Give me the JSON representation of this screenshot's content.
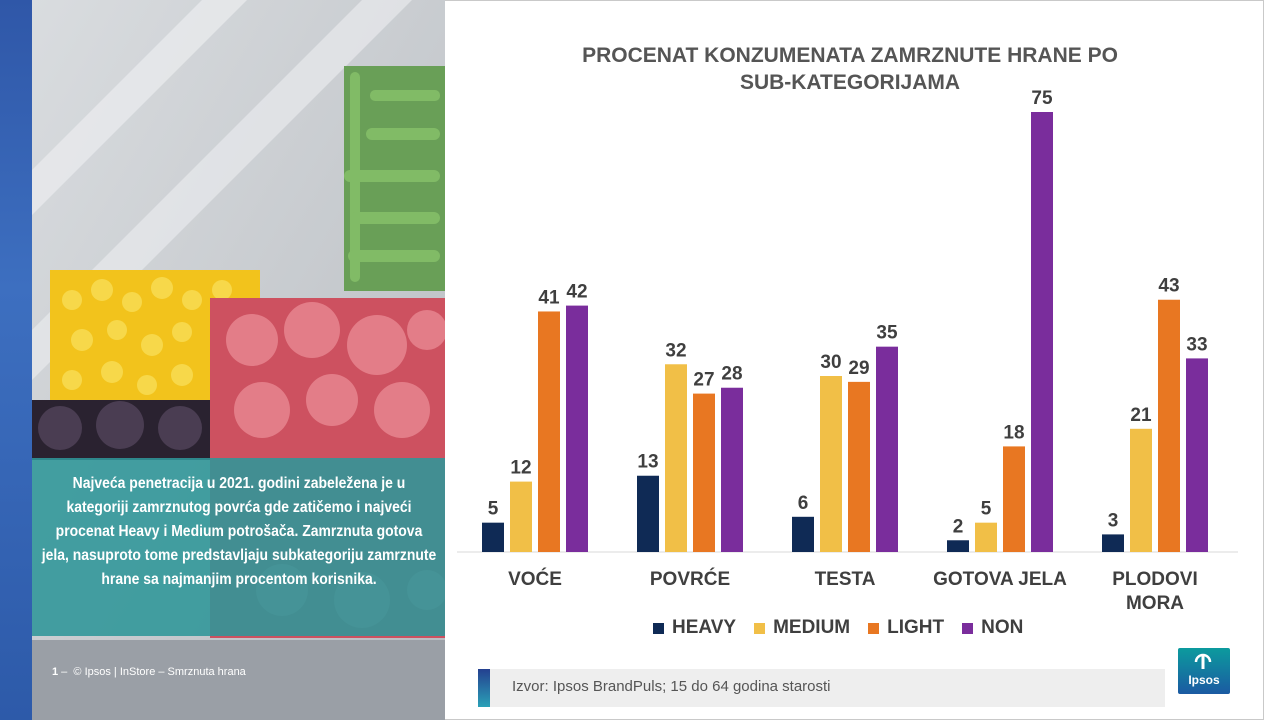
{
  "sidebar": {
    "summary": "Najveća penetracija u 2021. godini  zabeležena je u kategoriji zamrznutog povrća gde zatičemo i najveći procenat Heavy i Medium potrošača. Zamrznuta gotova jela, nasuproto tome predstavljaju subkategoriju zamrznute hrane sa najmanjim procentom korisnika.",
    "footer_number": "1",
    "footer_text": "© Ipsos | InStore – Smrznuta hrana"
  },
  "colors": {
    "heavy": "#0f2a55",
    "medium": "#f1bf47",
    "light": "#e87722",
    "non": "#7a2d9c",
    "teal_panel": "#2f9698"
  },
  "chart_data": {
    "type": "bar",
    "title": "PROCENAT KONZUMENATA ZAMRZNUTE HRANE PO SUB-KATEGORIJAMA",
    "title_lines": [
      "PROCENAT KONZUMENATA ZAMRZNUTE HRANE PO",
      "SUB-KATEGORIJAMA"
    ],
    "categories": [
      "VOĆE",
      "POVRĆE",
      "TESTA",
      "GOTOVA JELA",
      "PLODOVI MORA"
    ],
    "category_lines": [
      [
        "VOĆE"
      ],
      [
        "POVRĆE"
      ],
      [
        "TESTA"
      ],
      [
        "GOTOVA JELA"
      ],
      [
        "PLODOVI",
        "MORA"
      ]
    ],
    "series": [
      {
        "name": "HEAVY",
        "color": "#0f2a55",
        "values": [
          5,
          13,
          6,
          2,
          3
        ]
      },
      {
        "name": "MEDIUM",
        "color": "#f1bf47",
        "values": [
          12,
          32,
          30,
          5,
          21
        ]
      },
      {
        "name": "LIGHT",
        "color": "#e87722",
        "values": [
          41,
          27,
          29,
          18,
          43
        ]
      },
      {
        "name": "NON",
        "color": "#7a2d9c",
        "values": [
          42,
          28,
          35,
          75,
          33
        ]
      }
    ],
    "ylim": [
      0,
      80
    ],
    "grid": false,
    "legend": "bottom"
  },
  "legend": {
    "items": [
      {
        "label": "HEAVY",
        "color": "#0f2a55"
      },
      {
        "label": "MEDIUM",
        "color": "#f1bf47"
      },
      {
        "label": "LIGHT",
        "color": "#e87722"
      },
      {
        "label": "NON",
        "color": "#7a2d9c"
      }
    ]
  },
  "source": {
    "text": "Izvor: Ipsos BrandPuls; 15 do 64 godina starosti"
  },
  "logo": {
    "text": "Ipsos"
  }
}
